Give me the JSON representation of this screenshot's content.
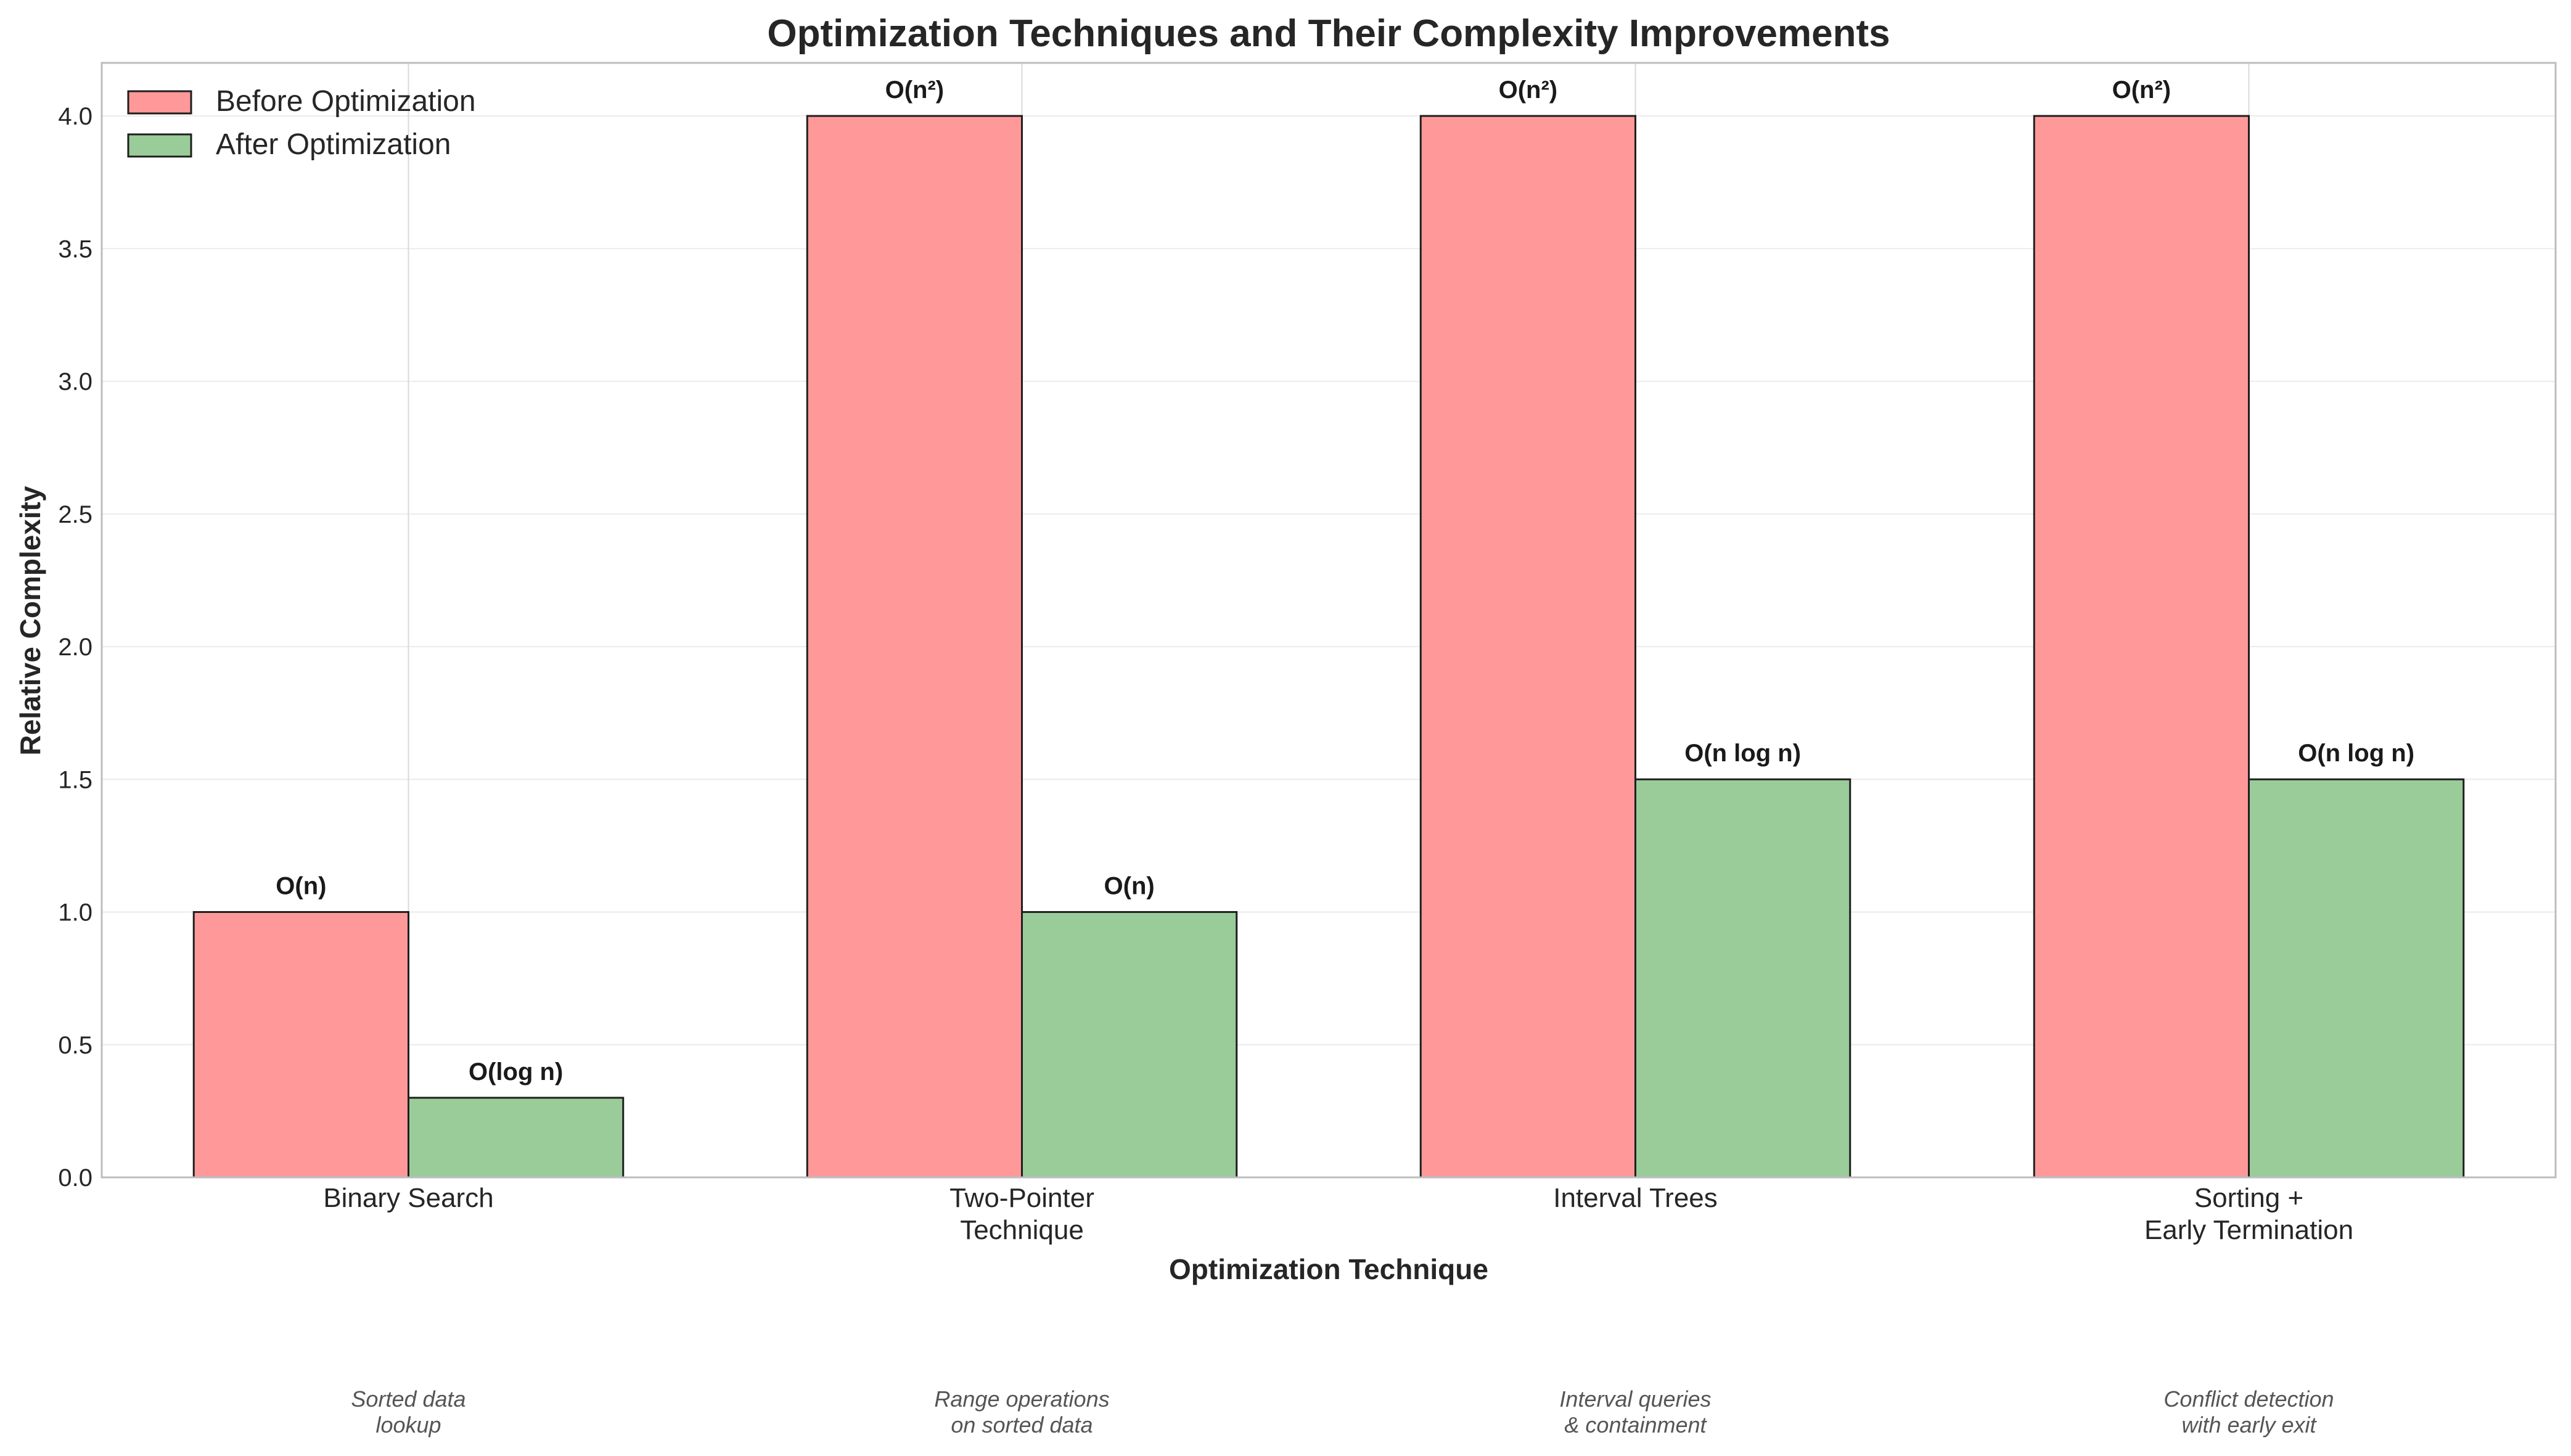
{
  "chart_data": {
    "type": "bar",
    "title": "Optimization Techniques and Their Complexity Improvements",
    "xlabel": "Optimization Technique",
    "ylabel": "Relative Complexity",
    "ylim": [
      0,
      4.2
    ],
    "yticks": [
      0.0,
      0.5,
      1.0,
      1.5,
      2.0,
      2.5,
      3.0,
      3.5,
      4.0
    ],
    "ytick_labels": [
      "0.0",
      "0.5",
      "1.0",
      "1.5",
      "2.0",
      "2.5",
      "3.0",
      "3.5",
      "4.0"
    ],
    "grid": true,
    "legend_position": "top-left",
    "categories": [
      [
        "Binary Search"
      ],
      [
        "Two-Pointer",
        "Technique"
      ],
      [
        "Interval Trees"
      ],
      [
        "Sorting +",
        "Early Termination"
      ]
    ],
    "notes": [
      [
        "Sorted data",
        "lookup"
      ],
      [
        "Range operations",
        "on sorted data"
      ],
      [
        "Interval queries",
        "& containment"
      ],
      [
        "Conflict detection",
        "with early exit"
      ]
    ],
    "series": [
      {
        "name": "Before Optimization",
        "color": "#ff9999",
        "values": [
          1.0,
          4.0,
          4.0,
          4.0
        ],
        "labels": [
          "O(n)",
          "O(n²)",
          "O(n²)",
          "O(n²)"
        ]
      },
      {
        "name": "After Optimization",
        "color": "#99cc99",
        "values": [
          0.3,
          1.0,
          1.5,
          1.5
        ],
        "labels": [
          "O(log n)",
          "O(n)",
          "O(n log n)",
          "O(n log n)"
        ]
      }
    ]
  }
}
